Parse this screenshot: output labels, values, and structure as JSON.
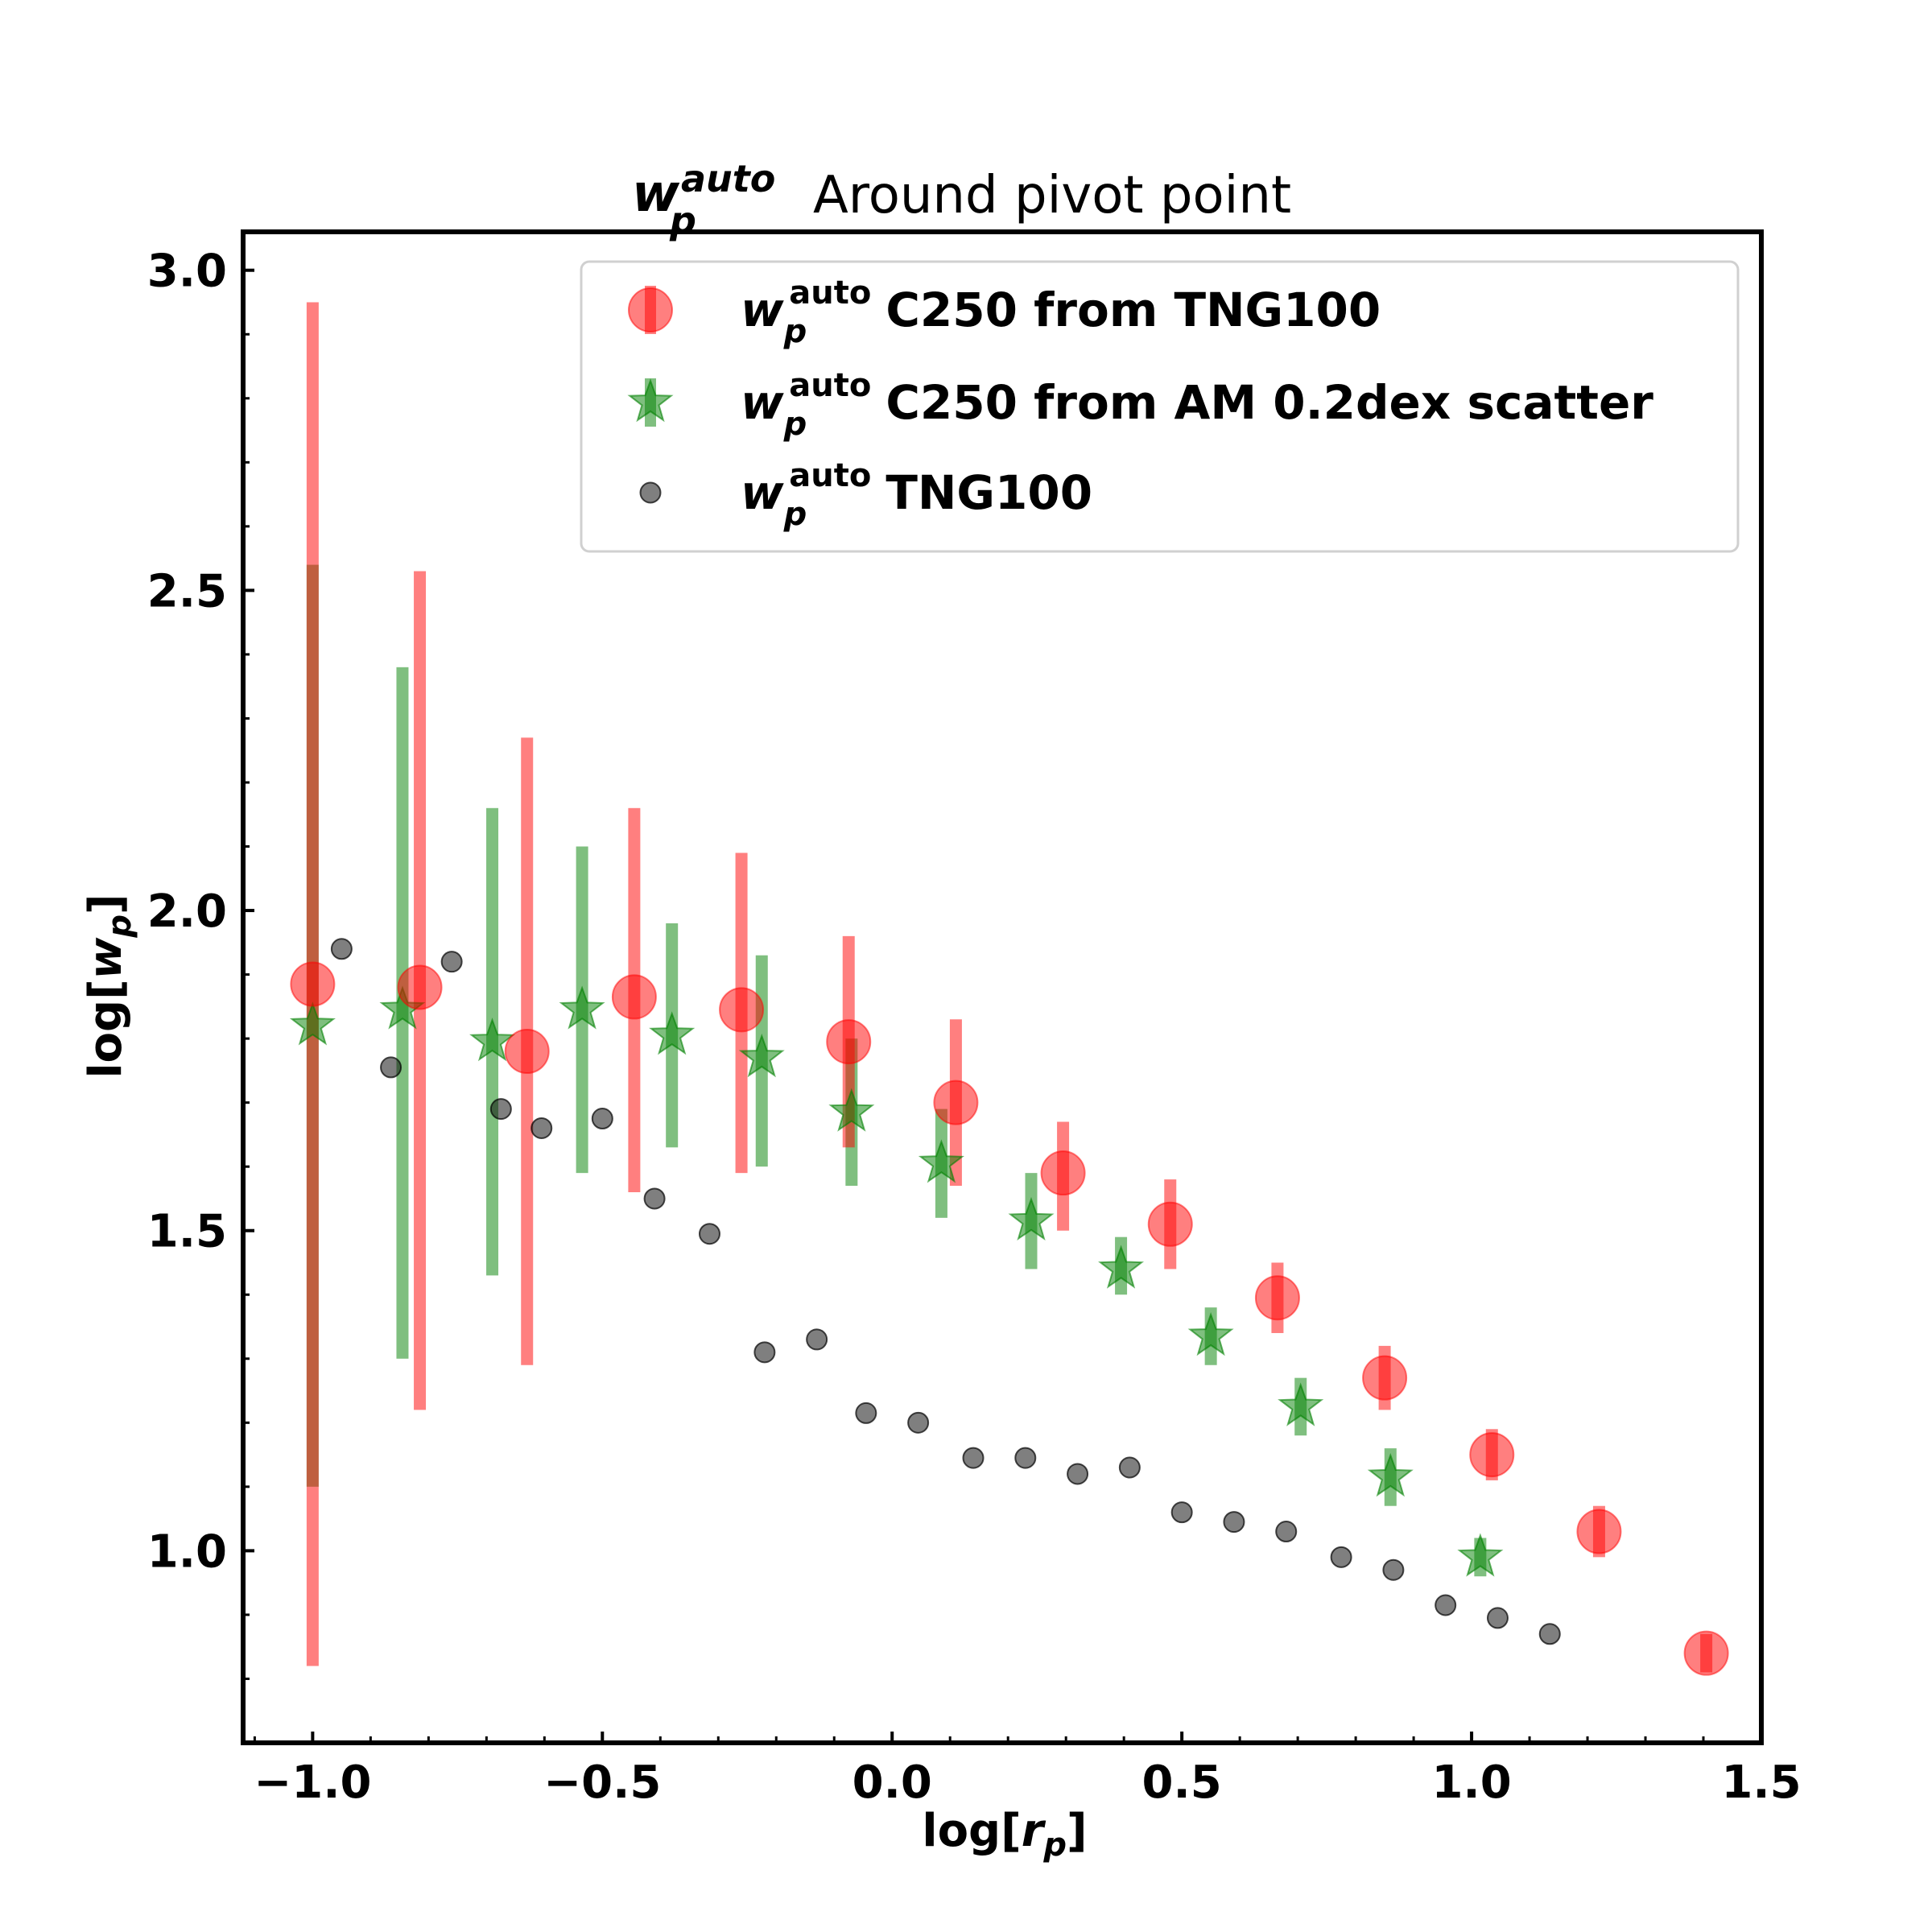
{
  "chart_data": {
    "type": "scatter",
    "title": "Around pivot point",
    "title_symbol": "w",
    "title_symbol_sub": "p",
    "title_symbol_sup": "auto",
    "xlabel": "log[r_p]",
    "ylabel": "log[w_p]",
    "xlim": [
      -1.12,
      1.5
    ],
    "ylim": [
      0.7,
      3.06
    ],
    "xticks": [
      -1.0,
      -0.5,
      0.0,
      0.5,
      1.0,
      1.5
    ],
    "xtick_labels": [
      "−1.0",
      "−0.5",
      "0.0",
      "0.5",
      "1.0",
      "1.5"
    ],
    "yticks": [
      1.0,
      1.5,
      2.0,
      2.5,
      3.0
    ],
    "ytick_labels": [
      "1.0",
      "1.5",
      "2.0",
      "2.5",
      "3.0"
    ],
    "grid": false,
    "legend_placement": "upper right",
    "series": [
      {
        "name": "C250 from TNG100",
        "marker": "circle",
        "color": "#ff0000",
        "x": [
          -1.0,
          -0.815,
          -0.63,
          -0.445,
          -0.26,
          -0.075,
          0.11,
          0.295,
          0.48,
          0.665,
          0.85,
          1.035,
          1.22,
          1.405
        ],
        "y": [
          1.885,
          1.88,
          1.78,
          1.865,
          1.845,
          1.795,
          1.7,
          1.59,
          1.51,
          1.395,
          1.27,
          1.15,
          1.03,
          0.84
        ],
        "yerr_low": [
          0.82,
          1.22,
          1.29,
          1.56,
          1.59,
          1.63,
          1.57,
          1.5,
          1.44,
          1.34,
          1.22,
          1.11,
          0.99,
          0.81
        ],
        "yerr_high": [
          2.95,
          2.53,
          2.27,
          2.16,
          2.09,
          1.96,
          1.83,
          1.67,
          1.58,
          1.45,
          1.32,
          1.19,
          1.07,
          0.87
        ]
      },
      {
        "name": "C250 from AM 0.2dex scatter",
        "marker": "star",
        "color": "#008000",
        "x": [
          -1.0,
          -0.845,
          -0.69,
          -0.535,
          -0.38,
          -0.225,
          -0.07,
          0.085,
          0.24,
          0.395,
          0.55,
          0.705,
          0.86,
          1.015
        ],
        "y": [
          1.82,
          1.845,
          1.795,
          1.845,
          1.805,
          1.77,
          1.685,
          1.605,
          1.515,
          1.44,
          1.335,
          1.225,
          1.115,
          0.99
        ],
        "yerr_low": [
          1.1,
          1.3,
          1.43,
          1.59,
          1.63,
          1.6,
          1.57,
          1.52,
          1.44,
          1.4,
          1.29,
          1.18,
          1.07,
          0.96
        ],
        "yerr_high": [
          2.54,
          2.38,
          2.16,
          2.1,
          1.98,
          1.93,
          1.8,
          1.69,
          1.59,
          1.49,
          1.38,
          1.27,
          1.16,
          1.02
        ]
      },
      {
        "name": "TNG100",
        "marker": "circle-small",
        "color": "#000000",
        "x": [
          -0.95,
          -0.865,
          -0.76,
          -0.675,
          -0.605,
          -0.5,
          -0.41,
          -0.315,
          -0.22,
          -0.13,
          -0.045,
          0.045,
          0.14,
          0.23,
          0.32,
          0.41,
          0.5,
          0.59,
          0.68,
          0.775,
          0.865,
          0.955,
          1.045,
          1.135
        ],
        "y": [
          1.94,
          1.755,
          1.92,
          1.69,
          1.66,
          1.675,
          1.55,
          1.495,
          1.31,
          1.33,
          1.215,
          1.2,
          1.145,
          1.145,
          1.12,
          1.13,
          1.06,
          1.045,
          1.03,
          0.99,
          0.97,
          0.915,
          0.895,
          0.87
        ]
      }
    ]
  },
  "legend": {
    "symbol": "w",
    "symbol_sub": "p",
    "symbol_sup": "auto",
    "items": [
      "C250 from TNG100",
      "C250 from AM 0.2dex scatter",
      "TNG100"
    ]
  },
  "axis_labels": {
    "x_prefix": "log[",
    "x_var": "r",
    "x_sub": "p",
    "x_suffix": "]",
    "y_prefix": "log[",
    "y_var": "w",
    "y_sub": "p",
    "y_suffix": "]"
  }
}
